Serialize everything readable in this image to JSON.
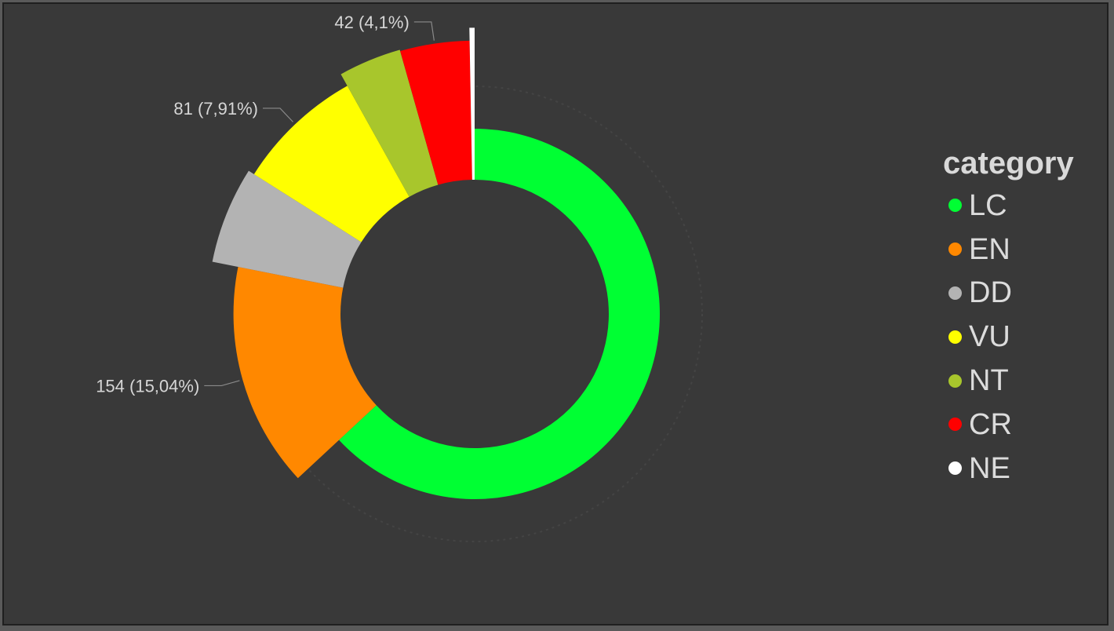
{
  "chart_data": {
    "type": "pie",
    "subtype": "donut",
    "categories": [
      "LC",
      "EN",
      "DD",
      "VU",
      "NT",
      "CR",
      "NE"
    ],
    "values": [
      646,
      154,
      60,
      81,
      38,
      42,
      3
    ],
    "colors": [
      "#00ff33",
      "#ff8800",
      "#b3b3b3",
      "#ffff00",
      "#a8c62c",
      "#ff0000",
      "#ffffff"
    ],
    "data_labels": [
      {
        "category": "CR",
        "text": "42 (4,1%)"
      },
      {
        "category": "VU",
        "text": "81 (7,91%)"
      },
      {
        "category": "EN",
        "text": "154 (15,04%)"
      }
    ],
    "legend": {
      "title": "category",
      "position": "right"
    }
  }
}
